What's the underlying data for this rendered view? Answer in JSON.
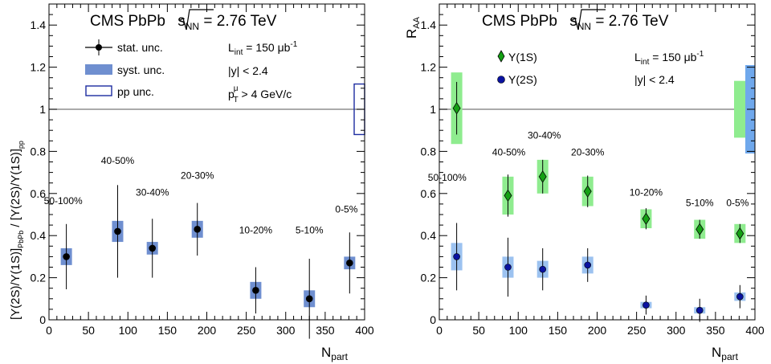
{
  "chart_data": [
    {
      "type": "scatter",
      "title_main": "CMS PbPb",
      "title_sqrt": "s",
      "title_sub": "NN",
      "title_tail": " = 2.76 TeV",
      "xlabel_main": "N",
      "xlabel_sub": "part",
      "ylabel_text": "[Υ(2S)/Υ(1S)]",
      "ylabel_sub_pbpb": "PbPb",
      "ylabel_mid": " / [Υ(2S)/Υ(1S)]",
      "ylabel_sub_pp": "pp",
      "xlim": [
        0,
        400
      ],
      "ylim": [
        0,
        1.5
      ],
      "xticks": [
        0,
        50,
        100,
        150,
        200,
        250,
        300,
        350,
        400
      ],
      "yticks": [
        0,
        0.2,
        0.4,
        0.6,
        0.8,
        1,
        1.2,
        1.4
      ],
      "reference_line": 1,
      "legend": {
        "stat": "stat. unc.",
        "syst": "syst. unc.",
        "pp": "pp unc."
      },
      "info": {
        "lint_pre": "L",
        "lint_sub": "int",
        "lint_val": " = 150 μb",
        "lint_sup": "-1",
        "rapidity": "|y| < 2.4",
        "pt_pre": "p",
        "pt_sup": "μ",
        "pt_sub": "T",
        "pt_val": " > 4 GeV/c"
      },
      "series": [
        {
          "marker": "circle",
          "color": "#000000",
          "syst_color": "#6f8fd0",
          "x": [
            22,
            87,
            131,
            188,
            262,
            330,
            381
          ],
          "y": [
            0.3,
            0.42,
            0.34,
            0.43,
            0.14,
            0.1,
            0.27
          ],
          "stat_err": [
            0.155,
            0.22,
            0.14,
            0.125,
            0.11,
            0.19,
            0.145
          ],
          "syst_err": [
            0.04,
            0.05,
            0.03,
            0.04,
            0.04,
            0.04,
            0.03
          ]
        }
      ],
      "pp_box": {
        "y": 1,
        "err": 0.12,
        "color": "#1c2ca0"
      },
      "centrality_labels": [
        {
          "text": "50-100%",
          "x": 18,
          "y": 0.55
        },
        {
          "text": "40-50%",
          "x": 87,
          "y": 0.74
        },
        {
          "text": "30-40%",
          "x": 131,
          "y": 0.59
        },
        {
          "text": "20-30%",
          "x": 188,
          "y": 0.67
        },
        {
          "text": "10-20%",
          "x": 262,
          "y": 0.41
        },
        {
          "text": "5-10%",
          "x": 330,
          "y": 0.41
        },
        {
          "text": "0-5%",
          "x": 377,
          "y": 0.51
        }
      ]
    },
    {
      "type": "scatter",
      "title_main": "CMS PbPb",
      "title_sqrt": "s",
      "title_sub": "NN",
      "title_tail": " = 2.76 TeV",
      "xlabel_main": "N",
      "xlabel_sub": "part",
      "ylabel_main": "R",
      "ylabel_sub": "AA",
      "xlim": [
        0,
        400
      ],
      "ylim": [
        0,
        1.5
      ],
      "xticks": [
        0,
        50,
        100,
        150,
        200,
        250,
        300,
        350,
        400
      ],
      "yticks": [
        0,
        0.2,
        0.4,
        0.6,
        0.8,
        1,
        1.2,
        1.4
      ],
      "reference_line": 1,
      "info": {
        "lint_pre": "L",
        "lint_sub": "int",
        "lint_val": " = 150 μb",
        "lint_sup": "-1",
        "rapidity": "|y| < 2.4"
      },
      "series": [
        {
          "name": "Υ(1S)",
          "marker": "diamond",
          "color": "#14a014",
          "syst_color": "#8fec8f",
          "x": [
            22,
            87,
            131,
            188,
            262,
            330,
            381
          ],
          "y": [
            1.005,
            0.59,
            0.68,
            0.61,
            0.48,
            0.43,
            0.41
          ],
          "stat_err": [
            0.125,
            0.1,
            0.08,
            0.075,
            0.05,
            0.045,
            0.045
          ],
          "syst_err": [
            0.17,
            0.09,
            0.08,
            0.07,
            0.045,
            0.045,
            0.045
          ]
        },
        {
          "name": "Υ(2S)",
          "marker": "circle",
          "color": "#0a12a0",
          "syst_color": "#9cc2f0",
          "x": [
            22,
            87,
            131,
            188,
            262,
            330,
            381
          ],
          "y": [
            0.3,
            0.25,
            0.24,
            0.26,
            0.07,
            0.045,
            0.11
          ],
          "stat_err": [
            0.16,
            0.14,
            0.1,
            0.08,
            0.045,
            0.055,
            0.055
          ],
          "syst_err": [
            0.065,
            0.05,
            0.04,
            0.04,
            0.015,
            0.015,
            0.02
          ]
        }
      ],
      "global_boxes": [
        {
          "y": 1,
          "err": 0.135,
          "color": "#8fec8f",
          "pos": "left"
        },
        {
          "y": 1,
          "err": 0.21,
          "color": "#6fa8ec",
          "pos": "right"
        }
      ],
      "centrality_labels": [
        {
          "text": "50-100%",
          "x": 10,
          "y": 0.66
        },
        {
          "text": "40-50%",
          "x": 88,
          "y": 0.78
        },
        {
          "text": "30-40%",
          "x": 133,
          "y": 0.86
        },
        {
          "text": "20-30%",
          "x": 188,
          "y": 0.78
        },
        {
          "text": "10-20%",
          "x": 262,
          "y": 0.59
        },
        {
          "text": "5-10%",
          "x": 330,
          "y": 0.54
        },
        {
          "text": "0-5%",
          "x": 378,
          "y": 0.54
        }
      ]
    }
  ]
}
